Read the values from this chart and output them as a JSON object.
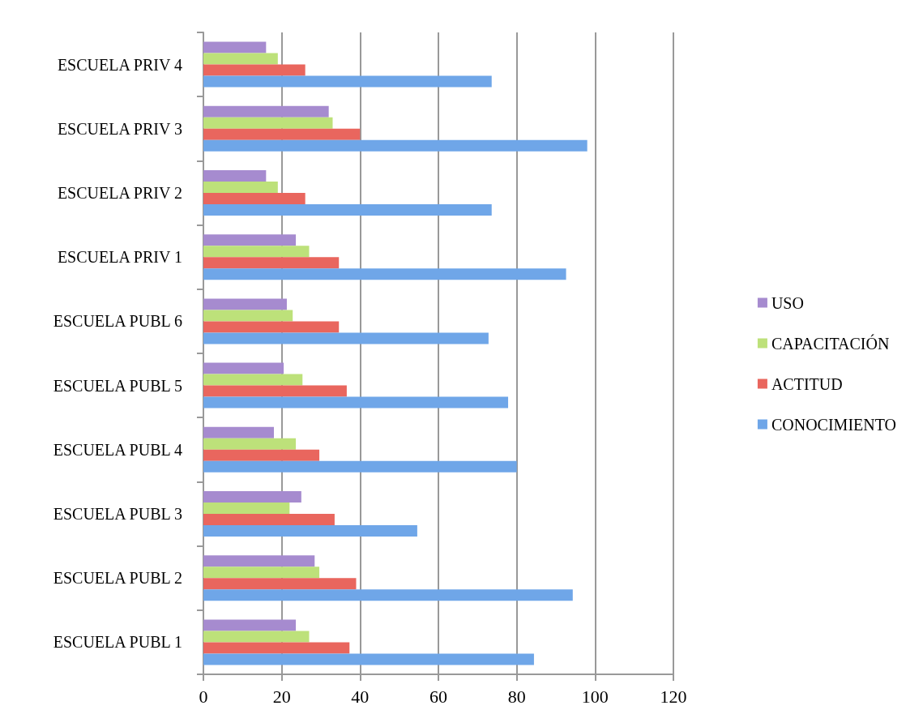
{
  "chart_data": {
    "type": "bar",
    "orientation": "horizontal",
    "categories": [
      "ESCUELA PRIV 4",
      "ESCUELA PRIV 3",
      "ESCUELA PRIV 2",
      "ESCUELA PRIV 1",
      "ESCUELA PUBL 6",
      "ESCUELA PUBL 5",
      "ESCUELA PUBL 4",
      "ESCUELA PUBL 3",
      "ESCUELA PUBL 2",
      "ESCUELA PUBL 1"
    ],
    "series": [
      {
        "name": "CONOCIMIENTO",
        "color": "#6fa6e8",
        "values": [
          73.6,
          98,
          73.6,
          92.6,
          72.8,
          77.8,
          80,
          54.6,
          94.3,
          84.4
        ]
      },
      {
        "name": "ACTITUD",
        "color": "#e9665e",
        "values": [
          26,
          40,
          26,
          34.6,
          34.6,
          36.6,
          29.6,
          33.5,
          39,
          37.3
        ]
      },
      {
        "name": "CAPACITACIÓN",
        "color": "#bde17a",
        "values": [
          19,
          33,
          19,
          27,
          22.8,
          25.3,
          23.6,
          22,
          29.6,
          27
        ]
      },
      {
        "name": "USO",
        "color": "#a68bcf",
        "values": [
          16,
          32,
          16,
          23.6,
          21.3,
          20.5,
          18,
          25,
          28.4,
          23.6
        ]
      }
    ],
    "xlim": [
      0,
      120
    ],
    "xticks": [
      0,
      20,
      40,
      60,
      80,
      100,
      120
    ],
    "grid": "x",
    "legend": "right"
  }
}
